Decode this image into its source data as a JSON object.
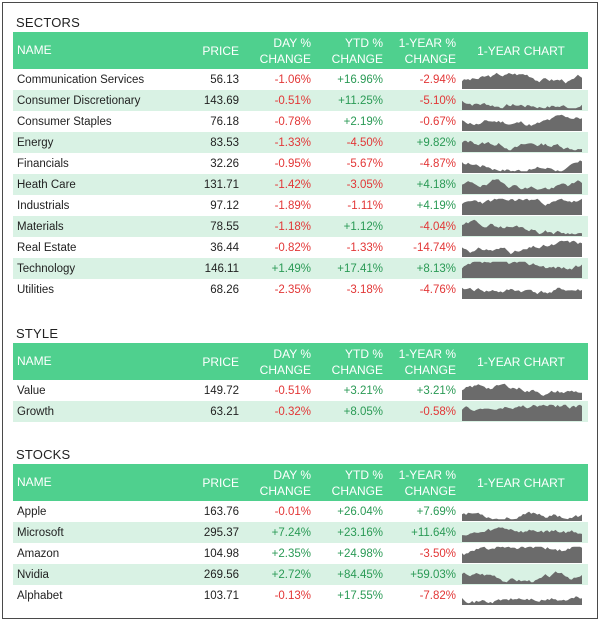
{
  "headers": {
    "name": "NAME",
    "price": "PRICE",
    "day1": "DAY %",
    "day2": "CHANGE",
    "ytd1": "YTD %",
    "ytd2": "CHANGE",
    "yr1": "1-YEAR %",
    "yr2": "CHANGE",
    "chart": "1-YEAR CHART"
  },
  "colors": {
    "header_bg": "#4fd08e",
    "stripe": "#d9f2e4",
    "negative": "#e23636",
    "positive": "#2a9a55",
    "spark": "#6b6b6b"
  },
  "sectors": {
    "title": "SECTORS",
    "rows": [
      {
        "name": "Communication Services",
        "price": "56.13",
        "day": "-1.06%",
        "ytd": "+16.96%",
        "yr": "-2.94%",
        "seed": 3
      },
      {
        "name": "Consumer Discretionary",
        "price": "143.69",
        "day": "-0.51%",
        "ytd": "+11.25%",
        "yr": "-5.10%",
        "seed": 7
      },
      {
        "name": "Consumer Staples",
        "price": "76.18",
        "day": "-0.78%",
        "ytd": "+2.19%",
        "yr": "-0.67%",
        "seed": 11
      },
      {
        "name": "Energy",
        "price": "83.53",
        "day": "-1.33%",
        "ytd": "-4.50%",
        "yr": "+9.82%",
        "seed": 13
      },
      {
        "name": "Financials",
        "price": "32.26",
        "day": "-0.95%",
        "ytd": "-5.67%",
        "yr": "-4.87%",
        "seed": 17
      },
      {
        "name": "Heath Care",
        "price": "131.71",
        "day": "-1.42%",
        "ytd": "-3.05%",
        "yr": "+4.18%",
        "seed": 19
      },
      {
        "name": "Industrials",
        "price": "97.12",
        "day": "-1.89%",
        "ytd": "-1.11%",
        "yr": "+4.19%",
        "seed": 23
      },
      {
        "name": "Materials",
        "price": "78.55",
        "day": "-1.18%",
        "ytd": "+1.12%",
        "yr": "-4.04%",
        "seed": 29
      },
      {
        "name": "Real Estate",
        "price": "36.44",
        "day": "-0.82%",
        "ytd": "-1.33%",
        "yr": "-14.74%",
        "seed": 31
      },
      {
        "name": "Technology",
        "price": "146.11",
        "day": "+1.49%",
        "ytd": "+17.41%",
        "yr": "+8.13%",
        "seed": 37
      },
      {
        "name": "Utilities",
        "price": "68.26",
        "day": "-2.35%",
        "ytd": "-3.18%",
        "yr": "-4.76%",
        "seed": 41
      }
    ]
  },
  "style": {
    "title": "STYLE",
    "rows": [
      {
        "name": "Value",
        "price": "149.72",
        "day": "-0.51%",
        "ytd": "+3.21%",
        "yr": "+3.21%",
        "seed": 43
      },
      {
        "name": "Growth",
        "price": "63.21",
        "day": "-0.32%",
        "ytd": "+8.05%",
        "yr": "-0.58%",
        "seed": 47
      }
    ]
  },
  "stocks": {
    "title": "STOCKS",
    "rows": [
      {
        "name": "Apple",
        "price": "163.76",
        "day": "-0.01%",
        "ytd": "+26.04%",
        "yr": "+7.69%",
        "seed": 53
      },
      {
        "name": "Microsoft",
        "price": "295.37",
        "day": "+7.24%",
        "ytd": "+23.16%",
        "yr": "+11.64%",
        "seed": 59
      },
      {
        "name": "Amazon",
        "price": "104.98",
        "day": "+2.35%",
        "ytd": "+24.98%",
        "yr": "-3.50%",
        "seed": 61
      },
      {
        "name": "Nvidia",
        "price": "269.56",
        "day": "+2.72%",
        "ytd": "+84.45%",
        "yr": "+59.03%",
        "seed": 67
      },
      {
        "name": "Alphabet",
        "price": "103.71",
        "day": "-0.13%",
        "ytd": "+17.55%",
        "yr": "-7.82%",
        "seed": 71
      }
    ]
  }
}
